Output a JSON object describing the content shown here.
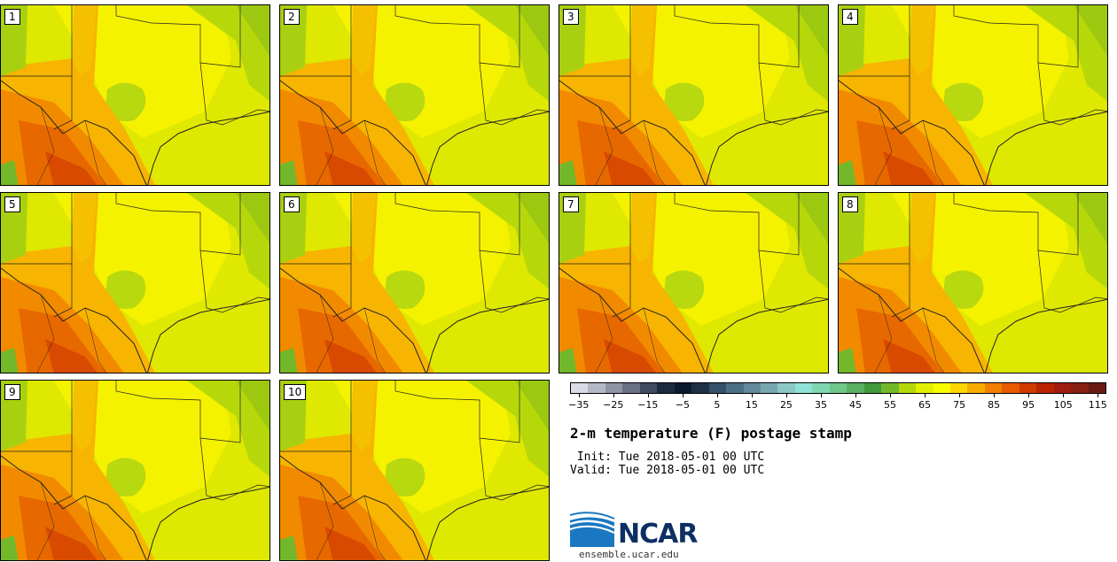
{
  "panels": [
    {
      "label": "1"
    },
    {
      "label": "2"
    },
    {
      "label": "3"
    },
    {
      "label": "4"
    },
    {
      "label": "5"
    },
    {
      "label": "6"
    },
    {
      "label": "7"
    },
    {
      "label": "8"
    },
    {
      "label": "9"
    },
    {
      "label": "10"
    }
  ],
  "colorbar": {
    "colors": [
      "#d9dbe6",
      "#b5b8c6",
      "#8f93a4",
      "#6b7185",
      "#3f4a60",
      "#1c2a40",
      "#0b1a2e",
      "#1e3045",
      "#34506a",
      "#4c6e84",
      "#62899a",
      "#78a7b0",
      "#8cc7c5",
      "#8ee3d6",
      "#7ed7b0",
      "#6fc788",
      "#58b160",
      "#3f9b3c",
      "#73b82a",
      "#b3d80c",
      "#e3ef00",
      "#fbfb00",
      "#fbd600",
      "#f7ac00",
      "#f27f00",
      "#e85a00",
      "#d03a00",
      "#b82500",
      "#a01c10",
      "#872010",
      "#6a1a12"
    ],
    "tick_labels": [
      "−35",
      "−25",
      "−15",
      "−5",
      "5",
      "15",
      "25",
      "35",
      "45",
      "55",
      "65",
      "75",
      "85",
      "95",
      "105",
      "115"
    ]
  },
  "title": "2-m temperature (F) postage stamp",
  "init": " Init: Tue 2018-05-01 00 UTC",
  "valid": "Valid: Tue 2018-05-01 00 UTC",
  "logo": {
    "text": "NCAR",
    "url": "ensemble.ucar.edu",
    "icon": "ncar-logo-icon"
  }
}
